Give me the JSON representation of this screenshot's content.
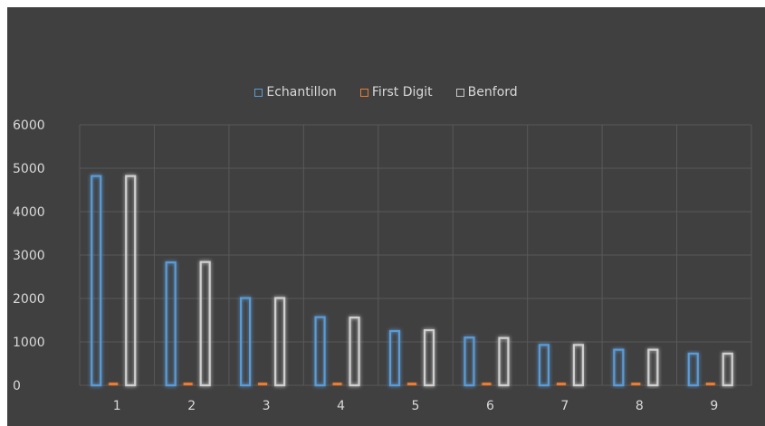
{
  "chart_data": {
    "type": "bar",
    "categories": [
      "1",
      "2",
      "3",
      "4",
      "5",
      "6",
      "7",
      "8",
      "9"
    ],
    "series": [
      {
        "name": "Echantillon",
        "values": [
          4820,
          2830,
          2010,
          1570,
          1250,
          1100,
          930,
          820,
          730
        ]
      },
      {
        "name": "First Digit",
        "values": [
          60,
          60,
          60,
          60,
          60,
          60,
          60,
          60,
          60
        ]
      },
      {
        "name": "Benford",
        "values": [
          4820,
          2840,
          2010,
          1560,
          1270,
          1090,
          930,
          820,
          730
        ]
      }
    ],
    "ylim": [
      0,
      6000
    ],
    "yticks": [
      "0",
      "1000",
      "2000",
      "3000",
      "4000",
      "5000",
      "6000"
    ],
    "grid": true,
    "legend_position": "top-center",
    "colors": {
      "background": "#404040",
      "gridline": "#595959",
      "Echantillon": "#5b9bd5",
      "First Digit": "#ed7d31",
      "Benford": "#a5a5a5"
    }
  }
}
